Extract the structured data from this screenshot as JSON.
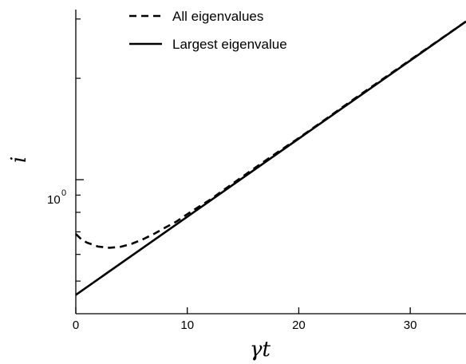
{
  "chart_data": {
    "type": "line",
    "title": "",
    "xlabel": "γt",
    "ylabel": "i",
    "yscale": "log",
    "xlim": [
      0,
      35
    ],
    "ylim": [
      0.4,
      3.2
    ],
    "grid": false,
    "legend_position": "top-left",
    "x_ticks": [
      {
        "value": 0,
        "label": "0"
      },
      {
        "value": 10,
        "label": "10"
      },
      {
        "value": 20,
        "label": "20"
      },
      {
        "value": 30,
        "label": "30"
      }
    ],
    "y_tick_label": {
      "base": "10",
      "exponent": "0",
      "value": 1
    },
    "series": [
      {
        "name": "All eigenvalues",
        "style": "dashed",
        "x": [
          0,
          0.5,
          1,
          2,
          3,
          4,
          5,
          6,
          7,
          8,
          9,
          10,
          11,
          12,
          14,
          16,
          18,
          20,
          22,
          25,
          28,
          31,
          35
        ],
        "y": [
          0.69,
          0.665,
          0.65,
          0.633,
          0.628,
          0.632,
          0.645,
          0.665,
          0.69,
          0.72,
          0.75,
          0.79,
          0.83,
          0.87,
          0.97,
          1.08,
          1.2,
          1.33,
          1.48,
          1.74,
          2.04,
          2.39,
          2.95
        ]
      },
      {
        "name": "Largest eigenvalue",
        "style": "solid",
        "x": [
          0,
          35
        ],
        "y": [
          0.455,
          2.95
        ]
      }
    ],
    "colors": {
      "line": "#000000",
      "axis": "#000000",
      "background": "#ffffff"
    }
  }
}
